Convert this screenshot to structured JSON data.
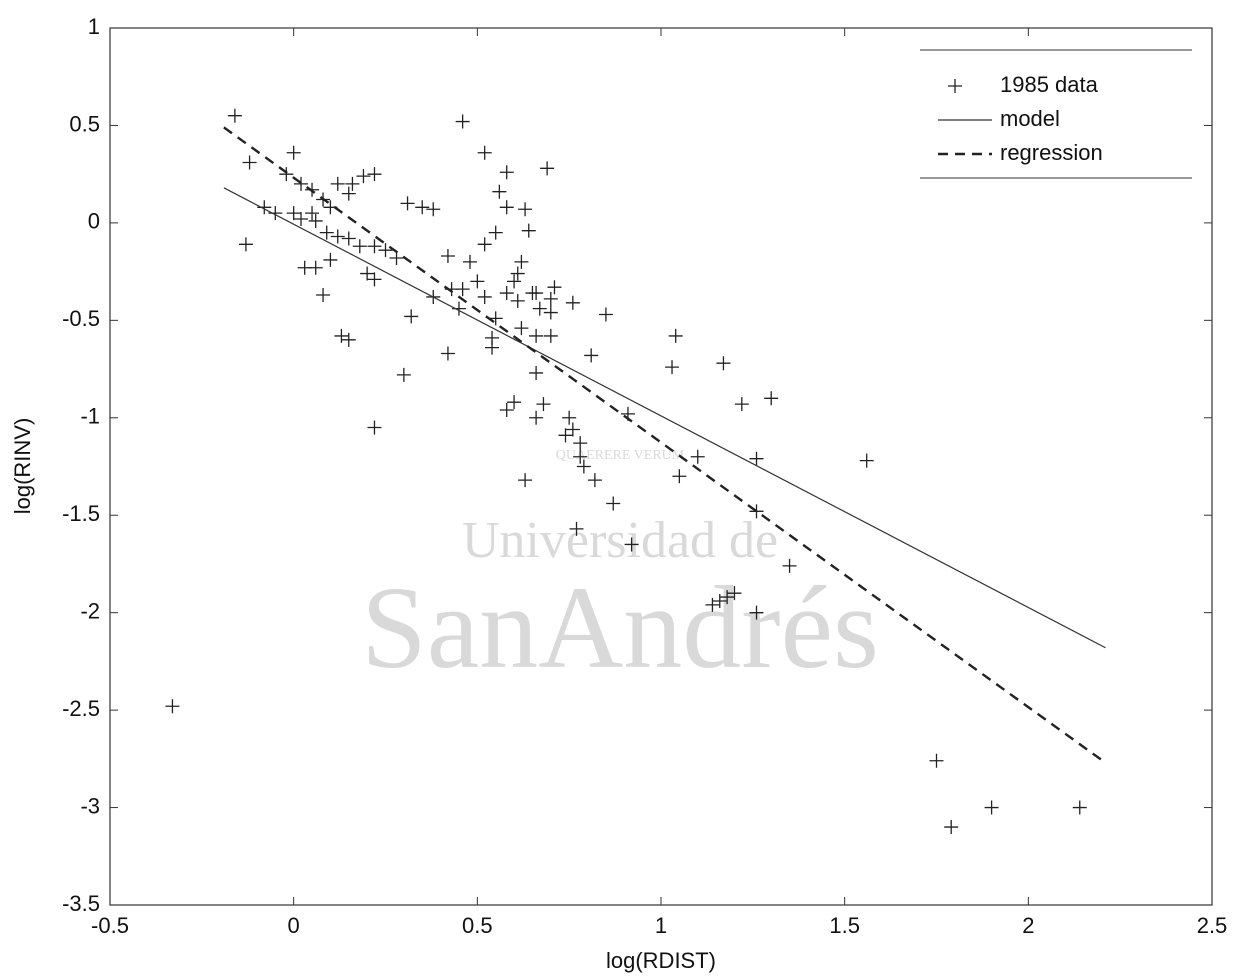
{
  "chart_data": {
    "type": "scatter",
    "xlabel": "log(RDIST)",
    "ylabel": "log(RINV)",
    "xlim": [
      -0.5,
      2.5
    ],
    "ylim": [
      -3.5,
      1
    ],
    "xticks": [
      -0.5,
      0,
      0.5,
      1,
      1.5,
      2,
      2.5
    ],
    "yticks": [
      -3.5,
      -3,
      -2.5,
      -2,
      -1.5,
      -1,
      -0.5,
      0,
      0.5,
      1
    ],
    "legend": "upper right",
    "series": [
      {
        "name": "1985 data",
        "type": "scatter",
        "color": "#222222",
        "x": [
          -0.16,
          -0.12,
          -0.13,
          -0.08,
          0,
          -0.02,
          0.02,
          0.05,
          0.08,
          0.12,
          0.16,
          0.19,
          0.22,
          0.15,
          0.1,
          0.05,
          0,
          -0.05,
          0.02,
          0.06,
          0.09,
          0.12,
          0.15,
          0.18,
          0.22,
          0.25,
          0.2,
          0.1,
          0.06,
          0.03,
          0.08,
          0.13,
          0.15,
          0.22,
          0.28,
          0.31,
          0.35,
          0.38,
          0.32,
          0.3,
          0.22,
          0.38,
          0.42,
          0.43,
          0.46,
          0.48,
          0.45,
          0.42,
          0.46,
          0.52,
          0.56,
          0.58,
          0.58,
          0.55,
          0.52,
          0.5,
          0.52,
          0.55,
          0.54,
          0.54,
          0.58,
          0.6,
          0.61,
          0.61,
          0.62,
          0.63,
          0.64,
          0.62,
          0.65,
          0.66,
          0.67,
          0.69,
          0.7,
          0.7,
          0.7,
          0.71,
          0.66,
          0.66,
          0.68,
          0.6,
          0.58,
          0.66,
          0.63,
          0.76,
          0.75,
          0.76,
          0.74,
          0.78,
          0.78,
          0.79,
          0.82,
          0.77,
          0.81,
          0.85,
          0.87,
          0.91,
          0.92,
          1.03,
          1.04,
          1.05,
          1.1,
          1.14,
          1.16,
          1.18,
          1.2,
          1.17,
          1.22,
          1.26,
          1.26,
          1.26,
          1.3,
          1.35,
          1.56,
          1.75,
          1.79,
          1.9,
          2.14,
          -0.33
        ],
        "values": [
          0.55,
          0.31,
          -0.11,
          0.08,
          0.36,
          0.25,
          0.2,
          0.17,
          0.12,
          0.2,
          0.2,
          0.24,
          0.25,
          0.15,
          0.08,
          0.05,
          0.05,
          0.05,
          0.02,
          0.01,
          -0.05,
          -0.07,
          -0.08,
          -0.12,
          -0.12,
          -0.14,
          -0.26,
          -0.19,
          -0.23,
          -0.23,
          -0.37,
          -0.58,
          -0.6,
          -0.29,
          -0.18,
          0.1,
          0.08,
          -0.38,
          -0.48,
          -0.78,
          -1.05,
          0.07,
          -0.17,
          -0.34,
          -0.34,
          -0.2,
          -0.44,
          -0.67,
          0.52,
          0.36,
          0.16,
          0.26,
          0.08,
          -0.05,
          -0.11,
          -0.3,
          -0.38,
          -0.49,
          -0.59,
          -0.64,
          -0.36,
          -0.3,
          -0.26,
          -0.4,
          -0.54,
          0.07,
          -0.04,
          -0.2,
          -0.36,
          -0.36,
          -0.44,
          0.28,
          -0.39,
          -0.46,
          -0.58,
          -0.33,
          -0.58,
          -0.77,
          -0.93,
          -0.92,
          -0.96,
          -1.0,
          -1.32,
          -0.41,
          -1.0,
          -1.06,
          -1.09,
          -1.13,
          -1.2,
          -1.25,
          -1.32,
          -1.57,
          -0.68,
          -0.47,
          -1.44,
          -0.98,
          -1.65,
          -0.74,
          -0.58,
          -1.3,
          -1.2,
          -1.96,
          -1.94,
          -1.92,
          -1.9,
          -0.72,
          -0.93,
          -1.21,
          -1.48,
          -2.0,
          -0.9,
          -1.76,
          -1.22,
          -2.76,
          -3.1,
          -3.0,
          -3.0,
          -2.48
        ]
      },
      {
        "name": "model",
        "type": "line",
        "dash": "solid",
        "color": "#333333",
        "x": [
          -0.19,
          2.21
        ],
        "values": [
          0.18,
          -2.18
        ]
      },
      {
        "name": "regression",
        "type": "line",
        "dash": "dashed",
        "color": "#222222",
        "x": [
          -0.19,
          2.21
        ],
        "values": [
          0.49,
          -2.77
        ]
      }
    ]
  },
  "watermark": {
    "motto": "QUAERERE VERUM",
    "line1": "Universidad de",
    "line2": "SanAndrés"
  }
}
